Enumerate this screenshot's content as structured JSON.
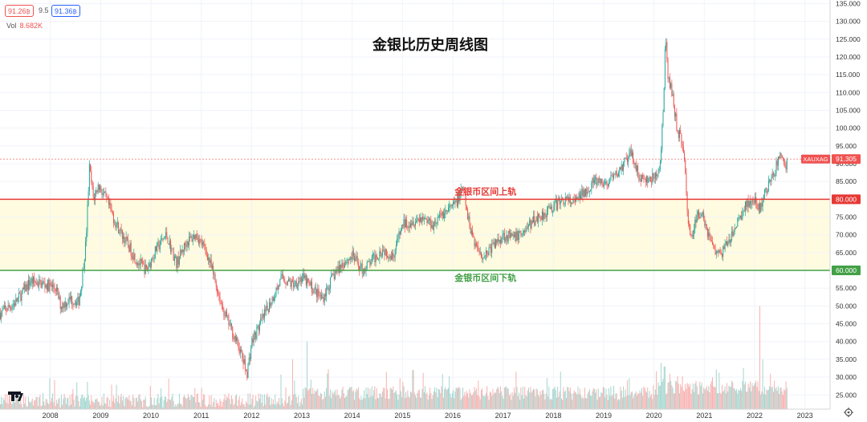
{
  "header": {
    "sell_price": "91.26",
    "sell_mark": "₿",
    "spread": "9.5",
    "buy_price": "91.36",
    "buy_mark": "₿",
    "volume_label": "Vol",
    "volume_value": "8.682K"
  },
  "colors": {
    "up": "#26a69a",
    "down": "#ef5350",
    "volume_up": "#a5d6cf",
    "volume_down": "#f7b2b0",
    "upper_line": "#e53935",
    "lower_line": "#43a047",
    "band_fill": "#fffbe0",
    "price_badge": "#ef5350"
  },
  "chart_data": {
    "type": "candlestick",
    "title": "金银比历史周线图",
    "symbol": "XAUXAG",
    "last_price": 91.305,
    "last_price_label": "91.305",
    "y_axis_position": "right",
    "ylim": [
      21,
      136
    ],
    "y_ticks": [
      "135.000",
      "130.000",
      "125.000",
      "120.000",
      "115.000",
      "110.000",
      "105.000",
      "100.000",
      "95.000",
      "90.000",
      "85.000",
      "80.000",
      "75.000",
      "70.000",
      "65.000",
      "60.000",
      "55.000",
      "50.000",
      "45.000",
      "40.000",
      "35.000",
      "30.000",
      "25.000"
    ],
    "x_ticks": [
      "2008",
      "2009",
      "2010",
      "2011",
      "2012",
      "2013",
      "2014",
      "2015",
      "2016",
      "2017",
      "2018",
      "2019",
      "2020",
      "2021",
      "2022",
      "2023"
    ],
    "xlim": [
      2007.0,
      2023.5
    ],
    "upper_band": {
      "value": 80,
      "label": "金银币区间上轨",
      "axis_label": "80.000"
    },
    "lower_band": {
      "value": 60,
      "label": "金银币区间下轨",
      "axis_label": "60.000"
    },
    "price_path": [
      [
        2007.0,
        48
      ],
      [
        2007.3,
        51
      ],
      [
        2007.6,
        57
      ],
      [
        2007.9,
        56
      ],
      [
        2008.1,
        55
      ],
      [
        2008.2,
        50
      ],
      [
        2008.4,
        52
      ],
      [
        2008.55,
        51
      ],
      [
        2008.6,
        55
      ],
      [
        2008.7,
        68
      ],
      [
        2008.77,
        89
      ],
      [
        2008.85,
        80
      ],
      [
        2008.95,
        84
      ],
      [
        2009.1,
        80
      ],
      [
        2009.3,
        73
      ],
      [
        2009.5,
        68
      ],
      [
        2009.7,
        63
      ],
      [
        2009.9,
        60
      ],
      [
        2010.1,
        66
      ],
      [
        2010.3,
        70
      ],
      [
        2010.5,
        62
      ],
      [
        2010.7,
        68
      ],
      [
        2010.9,
        70
      ],
      [
        2011.1,
        65
      ],
      [
        2011.25,
        58
      ],
      [
        2011.4,
        50
      ],
      [
        2011.6,
        43
      ],
      [
        2011.75,
        38
      ],
      [
        2011.9,
        31
      ],
      [
        2012.0,
        40
      ],
      [
        2012.2,
        46
      ],
      [
        2012.4,
        52
      ],
      [
        2012.6,
        58
      ],
      [
        2012.8,
        56
      ],
      [
        2013.0,
        58
      ],
      [
        2013.2,
        55
      ],
      [
        2013.4,
        52
      ],
      [
        2013.6,
        58
      ],
      [
        2013.8,
        62
      ],
      [
        2014.0,
        64
      ],
      [
        2014.2,
        60
      ],
      [
        2014.4,
        63
      ],
      [
        2014.6,
        66
      ],
      [
        2014.8,
        64
      ],
      [
        2015.0,
        73
      ],
      [
        2015.2,
        74
      ],
      [
        2015.4,
        75
      ],
      [
        2015.6,
        73
      ],
      [
        2015.8,
        76
      ],
      [
        2016.0,
        78
      ],
      [
        2016.1,
        80
      ],
      [
        2016.2,
        83
      ],
      [
        2016.3,
        74
      ],
      [
        2016.45,
        67
      ],
      [
        2016.6,
        64
      ],
      [
        2016.8,
        67
      ],
      [
        2017.0,
        70
      ],
      [
        2017.2,
        69
      ],
      [
        2017.4,
        71
      ],
      [
        2017.6,
        74
      ],
      [
        2017.8,
        76
      ],
      [
        2018.0,
        78
      ],
      [
        2018.2,
        80
      ],
      [
        2018.4,
        79
      ],
      [
        2018.6,
        82
      ],
      [
        2018.8,
        85
      ],
      [
        2019.0,
        84
      ],
      [
        2019.2,
        86
      ],
      [
        2019.4,
        90
      ],
      [
        2019.55,
        93
      ],
      [
        2019.7,
        86
      ],
      [
        2019.85,
        85
      ],
      [
        2020.0,
        86
      ],
      [
        2020.1,
        88
      ],
      [
        2020.18,
        105
      ],
      [
        2020.22,
        126
      ],
      [
        2020.26,
        115
      ],
      [
        2020.35,
        110
      ],
      [
        2020.45,
        100
      ],
      [
        2020.55,
        96
      ],
      [
        2020.6,
        90
      ],
      [
        2020.68,
        72
      ],
      [
        2020.75,
        70
      ],
      [
        2020.85,
        75
      ],
      [
        2020.95,
        77
      ],
      [
        2021.05,
        71
      ],
      [
        2021.15,
        68
      ],
      [
        2021.25,
        64
      ],
      [
        2021.4,
        66
      ],
      [
        2021.55,
        70
      ],
      [
        2021.7,
        75
      ],
      [
        2021.85,
        79
      ],
      [
        2022.0,
        79
      ],
      [
        2022.1,
        77
      ],
      [
        2022.2,
        82
      ],
      [
        2022.35,
        86
      ],
      [
        2022.5,
        93
      ],
      [
        2022.6,
        89
      ],
      [
        2022.65,
        91.3
      ]
    ],
    "volume_spikes": [
      [
        2012.8,
        30
      ],
      [
        2013.1,
        40
      ],
      [
        2013.5,
        31
      ],
      [
        2015.2,
        32
      ],
      [
        2016.5,
        29
      ],
      [
        2017.5,
        27
      ],
      [
        2020.2,
        33
      ],
      [
        2020.3,
        31
      ],
      [
        2022.1,
        50
      ],
      [
        2022.15,
        35
      ],
      [
        2022.3,
        31
      ]
    ]
  }
}
